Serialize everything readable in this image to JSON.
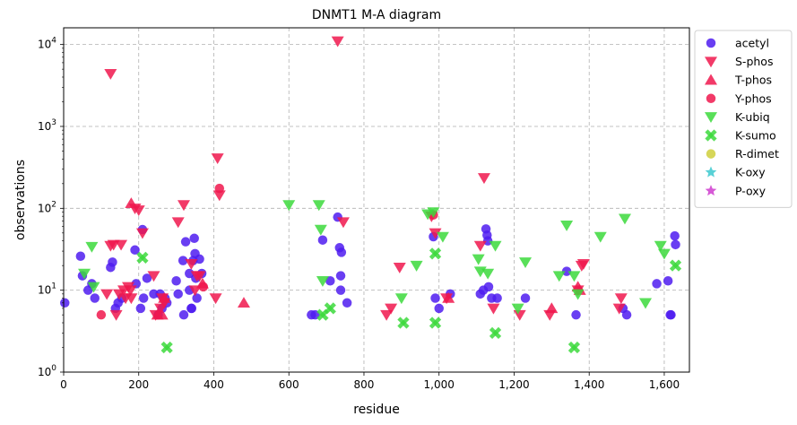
{
  "chart_data": {
    "type": "scatter",
    "title": "DNMT1 M-A diagram",
    "xlabel": "residue",
    "ylabel": "observations",
    "xlim": [
      0,
      1667
    ],
    "ylim": [
      1,
      16000
    ],
    "yscale": "log",
    "grid": true,
    "legend_position": "outside-right",
    "x_ticks": [
      0,
      200,
      400,
      600,
      800,
      1000,
      1200,
      1400,
      1600
    ],
    "x_tick_labels": [
      "0",
      "200",
      "400",
      "600",
      "800",
      "1,000",
      "1,200",
      "1,400",
      "1,600"
    ],
    "y_ticks": [
      1,
      10,
      100,
      1000,
      10000
    ],
    "y_tick_base": "10",
    "y_tick_exponents": [
      "0",
      "1",
      "2",
      "3",
      "4"
    ],
    "series": [
      {
        "name": "acetyl",
        "marker": "circle",
        "color": "#4f1cf0",
        "points": [
          [
            3,
            7
          ],
          [
            45,
            26
          ],
          [
            50,
            15
          ],
          [
            65,
            10
          ],
          [
            75,
            12
          ],
          [
            83,
            8
          ],
          [
            125,
            19
          ],
          [
            130,
            22
          ],
          [
            138,
            6
          ],
          [
            145,
            7
          ],
          [
            155,
            8
          ],
          [
            190,
            31
          ],
          [
            193,
            12
          ],
          [
            205,
            6
          ],
          [
            210,
            55
          ],
          [
            213,
            8
          ],
          [
            222,
            14
          ],
          [
            240,
            9
          ],
          [
            252,
            5
          ],
          [
            257,
            9
          ],
          [
            262,
            6
          ],
          [
            270,
            8
          ],
          [
            275,
            7
          ],
          [
            300,
            13
          ],
          [
            305,
            9
          ],
          [
            318,
            23
          ],
          [
            320,
            5
          ],
          [
            325,
            39
          ],
          [
            335,
            10
          ],
          [
            335,
            16
          ],
          [
            340,
            6
          ],
          [
            341,
            6
          ],
          [
            345,
            23
          ],
          [
            348,
            43
          ],
          [
            350,
            28
          ],
          [
            352,
            14
          ],
          [
            355,
            8
          ],
          [
            362,
            24
          ],
          [
            368,
            16
          ],
          [
            660,
            5
          ],
          [
            670,
            5
          ],
          [
            690,
            41
          ],
          [
            710,
            13
          ],
          [
            730,
            78
          ],
          [
            735,
            33
          ],
          [
            738,
            15
          ],
          [
            740,
            29
          ],
          [
            738,
            10
          ],
          [
            755,
            7
          ],
          [
            985,
            45
          ],
          [
            990,
            8
          ],
          [
            1000,
            6
          ],
          [
            1030,
            9
          ],
          [
            1110,
            9
          ],
          [
            1118,
            10
          ],
          [
            1125,
            56
          ],
          [
            1128,
            47
          ],
          [
            1130,
            40
          ],
          [
            1132,
            11
          ],
          [
            1140,
            8
          ],
          [
            1155,
            8
          ],
          [
            1230,
            8
          ],
          [
            1340,
            17
          ],
          [
            1365,
            5
          ],
          [
            1490,
            6
          ],
          [
            1500,
            5
          ],
          [
            1580,
            12
          ],
          [
            1610,
            13
          ],
          [
            1618,
            5
          ],
          [
            1628,
            46
          ],
          [
            1630,
            36
          ],
          [
            1616,
            5
          ]
        ]
      },
      {
        "name": "S-phos",
        "marker": "triangle-down",
        "color": "#f0174e",
        "points": [
          [
            125,
            4400
          ],
          [
            115,
            9
          ],
          [
            125,
            35
          ],
          [
            133,
            36
          ],
          [
            140,
            5
          ],
          [
            148,
            9
          ],
          [
            153,
            36
          ],
          [
            160,
            10
          ],
          [
            165,
            8
          ],
          [
            172,
            11
          ],
          [
            178,
            10
          ],
          [
            180,
            8
          ],
          [
            190,
            100
          ],
          [
            200,
            95
          ],
          [
            210,
            50
          ],
          [
            240,
            15
          ],
          [
            245,
            5
          ],
          [
            258,
            6
          ],
          [
            263,
            8
          ],
          [
            268,
            7
          ],
          [
            305,
            68
          ],
          [
            320,
            110
          ],
          [
            340,
            21
          ],
          [
            350,
            10
          ],
          [
            355,
            15
          ],
          [
            362,
            15
          ],
          [
            405,
            8
          ],
          [
            410,
            410
          ],
          [
            415,
            145
          ],
          [
            730,
            11000
          ],
          [
            745,
            68
          ],
          [
            860,
            5
          ],
          [
            872,
            6
          ],
          [
            895,
            19
          ],
          [
            980,
            80
          ],
          [
            990,
            50
          ],
          [
            1020,
            8
          ],
          [
            1110,
            35
          ],
          [
            1120,
            235
          ],
          [
            1145,
            6
          ],
          [
            1215,
            5
          ],
          [
            1295,
            5
          ],
          [
            1370,
            10
          ],
          [
            1380,
            20
          ],
          [
            1385,
            21
          ],
          [
            1480,
            6
          ],
          [
            1485,
            8
          ]
        ]
      },
      {
        "name": "T-phos",
        "marker": "triangle-up",
        "color": "#f0174e",
        "points": [
          [
            180,
            115
          ],
          [
            250,
            5
          ],
          [
            262,
            5
          ],
          [
            268,
            8
          ],
          [
            370,
            12
          ],
          [
            480,
            7
          ],
          [
            1025,
            8
          ],
          [
            1300,
            6
          ],
          [
            1370,
            11
          ],
          [
            1375,
            10
          ]
        ]
      },
      {
        "name": "Y-phos",
        "marker": "circle",
        "color": "#f0174e",
        "points": [
          [
            100,
            5
          ],
          [
            372,
            11
          ],
          [
            415,
            175
          ],
          [
            985,
            83
          ]
        ]
      },
      {
        "name": "K-ubiq",
        "marker": "triangle-down",
        "color": "#3cd93c",
        "points": [
          [
            55,
            16
          ],
          [
            75,
            34
          ],
          [
            80,
            11
          ],
          [
            600,
            110
          ],
          [
            680,
            110
          ],
          [
            685,
            55
          ],
          [
            690,
            13
          ],
          [
            900,
            8
          ],
          [
            940,
            20
          ],
          [
            970,
            85
          ],
          [
            985,
            90
          ],
          [
            1010,
            45
          ],
          [
            1105,
            24
          ],
          [
            1110,
            17
          ],
          [
            1130,
            16
          ],
          [
            1150,
            35
          ],
          [
            1210,
            6
          ],
          [
            1230,
            22
          ],
          [
            1320,
            15
          ],
          [
            1340,
            62
          ],
          [
            1360,
            15
          ],
          [
            1370,
            9
          ],
          [
            1430,
            45
          ],
          [
            1495,
            75
          ],
          [
            1550,
            7
          ],
          [
            1590,
            35
          ],
          [
            1600,
            28
          ]
        ]
      },
      {
        "name": "K-sumo",
        "marker": "x",
        "color": "#3cd93c",
        "points": [
          [
            210,
            25
          ],
          [
            275,
            2
          ],
          [
            690,
            5
          ],
          [
            710,
            6
          ],
          [
            905,
            4
          ],
          [
            990,
            28
          ],
          [
            990,
            4
          ],
          [
            1150,
            3
          ],
          [
            1360,
            2
          ],
          [
            1630,
            20
          ]
        ]
      },
      {
        "name": "R-dimet",
        "marker": "circle",
        "color": "#cfcf3c",
        "points": []
      },
      {
        "name": "K-oxy",
        "marker": "star",
        "color": "#3cc9cf",
        "points": []
      },
      {
        "name": "P-oxy",
        "marker": "star",
        "color": "#cf3ccf",
        "points": []
      }
    ]
  }
}
